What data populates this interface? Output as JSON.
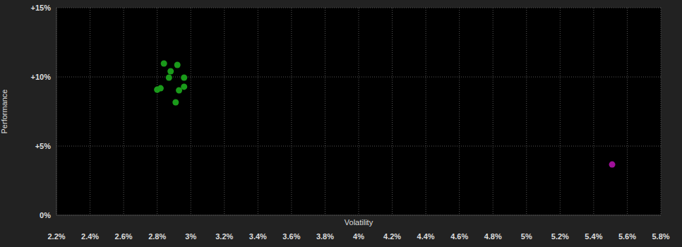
{
  "chart_data": {
    "type": "scatter",
    "x_label": "Volatility",
    "y_label": "Performance",
    "xlim": [
      2.2,
      5.8
    ],
    "ylim": [
      0,
      15
    ],
    "xticks": [
      {
        "value": 2.2,
        "label": "2.2%"
      },
      {
        "value": 2.4,
        "label": "2.4%"
      },
      {
        "value": 2.6,
        "label": "2.6%"
      },
      {
        "value": 2.8,
        "label": "2.8%"
      },
      {
        "value": 3.0,
        "label": "3%"
      },
      {
        "value": 3.2,
        "label": "3.2%"
      },
      {
        "value": 3.4,
        "label": "3.4%"
      },
      {
        "value": 3.6,
        "label": "3.6%"
      },
      {
        "value": 3.8,
        "label": "3.8%"
      },
      {
        "value": 4.0,
        "label": "4%"
      },
      {
        "value": 4.2,
        "label": "4.2%"
      },
      {
        "value": 4.4,
        "label": "4.4%"
      },
      {
        "value": 4.6,
        "label": "4.6%"
      },
      {
        "value": 4.8,
        "label": "4.8%"
      },
      {
        "value": 5.0,
        "label": "5%"
      },
      {
        "value": 5.2,
        "label": "5.2%"
      },
      {
        "value": 5.4,
        "label": "5.4%"
      },
      {
        "value": 5.6,
        "label": "5.6%"
      },
      {
        "value": 5.8,
        "label": "5.8%"
      }
    ],
    "yticks": [
      {
        "value": 0,
        "label": "0%"
      },
      {
        "value": 5,
        "label": "+5%"
      },
      {
        "value": 10,
        "label": "+10%"
      },
      {
        "value": 15,
        "label": "+15%"
      }
    ],
    "grid": true,
    "series": [
      {
        "color": "#1a9a1a",
        "marker": "circle",
        "x": [
          2.84,
          2.92,
          2.88,
          2.87,
          2.96,
          2.96,
          2.82,
          2.8,
          2.93,
          2.91
        ],
        "y": [
          10.97,
          10.87,
          10.41,
          9.95,
          9.95,
          9.29,
          9.18,
          9.08,
          9.03,
          8.16
        ]
      },
      {
        "color": "#a0109a",
        "marker": "circle",
        "x": [
          5.51
        ],
        "y": [
          3.67
        ]
      }
    ]
  }
}
